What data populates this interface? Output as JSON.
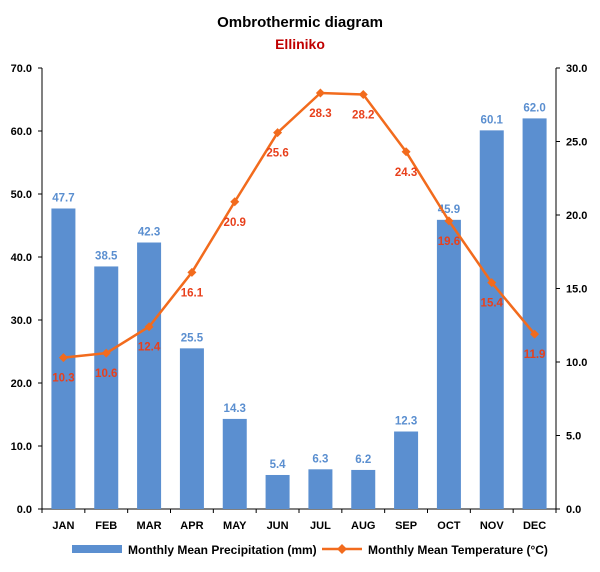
{
  "chart_data": {
    "type": "bar",
    "title": "Ombrothermic diagram",
    "subtitle": "Elliniko",
    "categories": [
      "JAN",
      "FEB",
      "MAR",
      "APR",
      "MAY",
      "JUN",
      "JUL",
      "AUG",
      "SEP",
      "OCT",
      "NOV",
      "DEC"
    ],
    "series": [
      {
        "name": "Monthly Mean Precipitation (mm)",
        "type": "bar",
        "axis": "left",
        "color": "#5b8fd0",
        "values": [
          47.7,
          38.5,
          42.3,
          25.5,
          14.3,
          5.4,
          6.3,
          6.2,
          12.3,
          45.9,
          60.1,
          62.0
        ],
        "labels": [
          "47.7",
          "38.5",
          "42.3",
          "25.5",
          "14.3",
          "5.4",
          "6.3",
          "6.2",
          "12.3",
          "45.9",
          "60.1",
          "62.0"
        ]
      },
      {
        "name": "Monthly Mean Temperature (°C)",
        "type": "line",
        "axis": "right",
        "color": "#f26b1d",
        "label_color": "#e8401c",
        "marker": "diamond",
        "values": [
          10.3,
          10.6,
          12.4,
          16.1,
          20.9,
          25.6,
          28.3,
          28.2,
          24.3,
          19.6,
          15.4,
          11.9
        ],
        "labels": [
          "10.3",
          "10.6",
          "12.4",
          "16.1",
          "20.9",
          "25.6",
          "28.3",
          "28.2",
          "24.3",
          "19.6",
          "15.4",
          "11.9"
        ]
      }
    ],
    "y_left": {
      "min": 0,
      "max": 70,
      "step": 10,
      "ticks": [
        "0.0",
        "10.0",
        "20.0",
        "30.0",
        "40.0",
        "50.0",
        "60.0",
        "70.0"
      ]
    },
    "y_right": {
      "min": 0,
      "max": 30,
      "step": 5,
      "ticks": [
        "0.0",
        "5.0",
        "10.0",
        "15.0",
        "20.0",
        "25.0",
        "30.0"
      ]
    },
    "grid": false,
    "legend": "bottom"
  }
}
